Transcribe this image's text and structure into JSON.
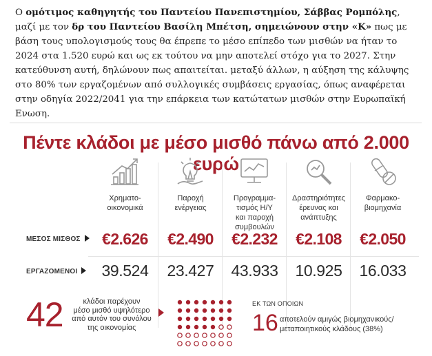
{
  "article": {
    "p1": "Ο ",
    "b1": "ομότιμος καθηγητής του Παντείου Πανεπιστημίου, Σάββας Ρομπόλης",
    "p2": ", μαζί με τον ",
    "b2": "δρ του Παντείου Βασίλη Μπέτση, σημειώνουν στην «Κ»",
    "p3": " πως με βάση τους υπολογισμούς τους θα έπρεπε το μέσο επίπεδο των μισθών να ήταν το 2024 στα 1.520 ευρώ και ως εκ τούτου να μην αποτελεί στόχο για το 2027. Στην κατεύθυνση αυτή, δηλώνουν πως απαιτείται. μεταξύ άλλων, η αύξηση της κάλυψης στο 80% των εργαζομένων από συλλογικές συμβάσεις εργασίας, όπως αναφέρεται στην οδηγία 2022/2041 για την επάρκεια των κατώτατων μισθών στην Ευρωπαϊκή Ενωση."
  },
  "infographic": {
    "title": "Πέντε κλάδοι με μέσο μισθό πάνω από 2.000 ευρώ",
    "row_labels": {
      "salary": "ΜΕΣΟΣ ΜΙΣΘΟΣ",
      "workers": "ΕΡΓΑΖΟΜΕΝΟΙ"
    },
    "sectors": [
      {
        "icon": "growth-chart-icon",
        "name": "Χρηματο-\nοικονομικά",
        "salary": "€2.626",
        "workers": "39.524"
      },
      {
        "icon": "lightbulb-icon",
        "name": "Παροχή\nενέργειας",
        "salary": "€2.490",
        "workers": "23.427"
      },
      {
        "icon": "computer-monitor-icon",
        "name": "Προγραμμα-\nτισμός Η/Υ\nκαι παροχή\nσυμβουλών",
        "salary": "€2.232",
        "workers": "43.933"
      },
      {
        "icon": "magnifier-icon",
        "name": "Δραστηριότητες\nέρευνας και\nανάπτυξης",
        "salary": "€2.108",
        "workers": "10.925"
      },
      {
        "icon": "pills-icon",
        "name": "Φαρμακο-\nβιομηχανία",
        "salary": "€2.050",
        "workers": "16.033"
      }
    ],
    "footer": {
      "big_count": "42",
      "big_note": "κλάδοι παρέχουν\nμέσο μισθό υψηλότερο\nαπό αυτόν του συνόλου\nτης οικονομίας",
      "of_which": "ΕΚ ΤΩΝ ΟΠΟΙΩΝ",
      "sub_count": "16",
      "sub_note": "αποτελούν αμιγώς βιομηχανικούς/\nμεταποιητικούς κλάδους (38%)",
      "dots_total": 42,
      "dots_highlighted": 16
    },
    "accent_color": "#a7212d"
  }
}
